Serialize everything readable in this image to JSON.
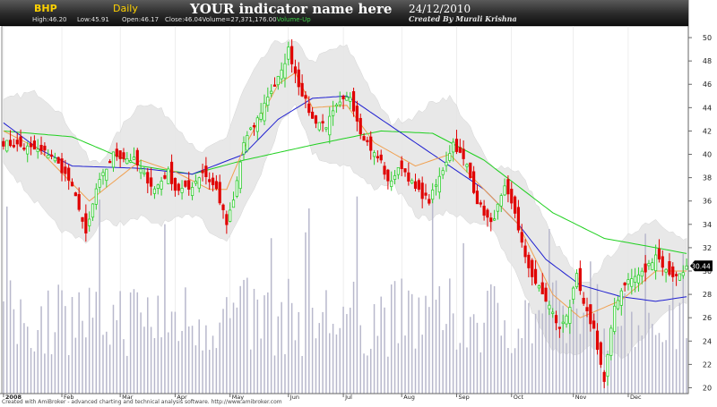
{
  "header": {
    "ticker": "BHP",
    "interval": "Daily",
    "indicator_name": "YOUR indicator name here",
    "date": "24/12/2010",
    "credit": "Created By Murali Krishna",
    "high": "High:46.20",
    "low": "Low:45.91",
    "open": "Open:46.17",
    "close_volume": "Close:46.04Volume=27,371,176.00",
    "close_volume_suffix": "Volume-Up"
  },
  "footer": "Created with AmiBroker - advanced charting and technical analysis software. http://www.amibroker.com",
  "last_price_label": "30.44",
  "colors": {
    "up": "#2fcf2f",
    "down": "#e00000",
    "ma_fast": "#f0a050",
    "ma_mid": "#2020d0",
    "ma_slow": "#20d020",
    "band": "#e6e6e6",
    "volume": "#b8b8cc",
    "grid": "#dcdcdc"
  },
  "chart_data": {
    "type": "candlestick",
    "ylim": [
      19.5,
      51
    ],
    "y_ticks": [
      "20",
      "22",
      "24",
      "26",
      "28",
      "30",
      "32",
      "34",
      "36",
      "38",
      "40",
      "42",
      "44",
      "46",
      "48",
      "50"
    ],
    "x_ticks": [
      "2008",
      "Feb",
      "Mar",
      "Apr",
      "May",
      "Jun",
      "Jul",
      "Aug",
      "Sep",
      "Oct",
      "Nov",
      "Dec"
    ],
    "last_close": 30.44,
    "close_path": [
      [
        0,
        41
      ],
      [
        8,
        40.5
      ],
      [
        14,
        40
      ],
      [
        19,
        37.8
      ],
      [
        22,
        35.5
      ],
      [
        24,
        33
      ],
      [
        27,
        37
      ],
      [
        32,
        40
      ],
      [
        38,
        39.5
      ],
      [
        40,
        38.6
      ],
      [
        44,
        37
      ],
      [
        48,
        38.5
      ],
      [
        50,
        37
      ],
      [
        54,
        37
      ],
      [
        58,
        38.5
      ],
      [
        62,
        37
      ],
      [
        65,
        34
      ],
      [
        67,
        36
      ],
      [
        70,
        41
      ],
      [
        74,
        43
      ],
      [
        77,
        45
      ],
      [
        81,
        47
      ],
      [
        83,
        49
      ],
      [
        86,
        46
      ],
      [
        90,
        43
      ],
      [
        94,
        42.5
      ],
      [
        97,
        44
      ],
      [
        101,
        45
      ],
      [
        104,
        42
      ],
      [
        108,
        40
      ],
      [
        110,
        39.4
      ],
      [
        112,
        37.5
      ],
      [
        116,
        39
      ],
      [
        120,
        37
      ],
      [
        124,
        36
      ],
      [
        127,
        38
      ],
      [
        131,
        41
      ],
      [
        135,
        39
      ],
      [
        138,
        36
      ],
      [
        142,
        34
      ],
      [
        146,
        37
      ],
      [
        149,
        35
      ],
      [
        152,
        31
      ],
      [
        155,
        29
      ],
      [
        159,
        27
      ],
      [
        162,
        25
      ],
      [
        165,
        27
      ],
      [
        167,
        29.5
      ],
      [
        169,
        27
      ],
      [
        172,
        25
      ],
      [
        175,
        20.5
      ],
      [
        178,
        27
      ],
      [
        181,
        29
      ],
      [
        184,
        29.5
      ],
      [
        187,
        30
      ],
      [
        190,
        31.5
      ],
      [
        193,
        30
      ],
      [
        196,
        29.5
      ],
      [
        199,
        30.44
      ]
    ],
    "ma_slow_path": [
      [
        0,
        42
      ],
      [
        20,
        41.5
      ],
      [
        40,
        39
      ],
      [
        55,
        38.3
      ],
      [
        70,
        39.5
      ],
      [
        90,
        40.8
      ],
      [
        110,
        42
      ],
      [
        125,
        41.8
      ],
      [
        140,
        39.5
      ],
      [
        160,
        35
      ],
      [
        175,
        32.8
      ],
      [
        190,
        32
      ],
      [
        199,
        31.5
      ]
    ],
    "ma_mid_path": [
      [
        0,
        42.7
      ],
      [
        10,
        40.5
      ],
      [
        20,
        39
      ],
      [
        40,
        38.8
      ],
      [
        55,
        38.3
      ],
      [
        70,
        40
      ],
      [
        80,
        43
      ],
      [
        90,
        44.8
      ],
      [
        100,
        45
      ],
      [
        110,
        43
      ],
      [
        120,
        41
      ],
      [
        130,
        39
      ],
      [
        140,
        37
      ],
      [
        150,
        34
      ],
      [
        158,
        31
      ],
      [
        168,
        28.8
      ],
      [
        180,
        27.8
      ],
      [
        190,
        27.4
      ],
      [
        199,
        27.8
      ]
    ],
    "ma_fast_path": [
      [
        0,
        42
      ],
      [
        10,
        40.5
      ],
      [
        15,
        39
      ],
      [
        25,
        36
      ],
      [
        40,
        39.5
      ],
      [
        50,
        38.5
      ],
      [
        60,
        37
      ],
      [
        65,
        37
      ],
      [
        70,
        40.5
      ],
      [
        80,
        46
      ],
      [
        85,
        47
      ],
      [
        90,
        44
      ],
      [
        100,
        44.2
      ],
      [
        108,
        41
      ],
      [
        120,
        39
      ],
      [
        130,
        40
      ],
      [
        140,
        37
      ],
      [
        150,
        34
      ],
      [
        160,
        28
      ],
      [
        168,
        26
      ],
      [
        180,
        27.5
      ],
      [
        190,
        30
      ],
      [
        199,
        30
      ]
    ]
  }
}
